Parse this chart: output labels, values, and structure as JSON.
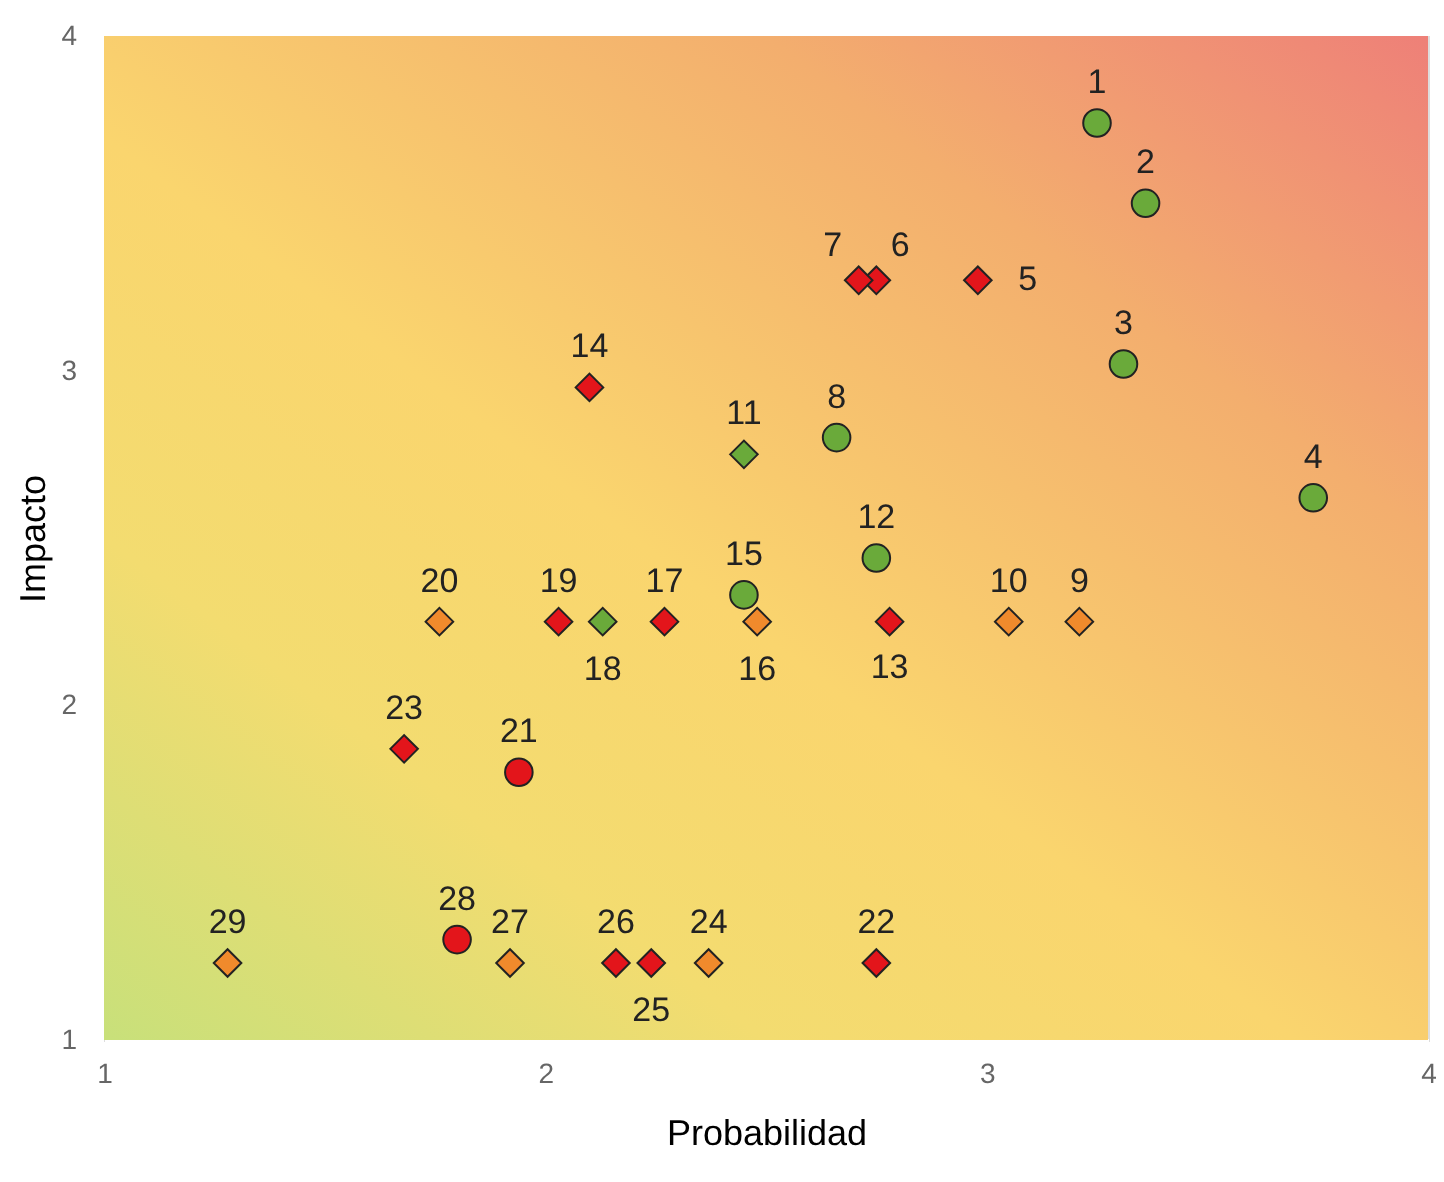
{
  "chart_data": {
    "type": "scatter",
    "xlabel": "Probabilidad",
    "ylabel": "Impacto",
    "xlim": [
      1,
      4
    ],
    "ylim": [
      1,
      4
    ],
    "xticks": [
      1,
      2,
      3,
      4
    ],
    "yticks": [
      1,
      2,
      3,
      4
    ],
    "legend": false,
    "series": [
      {
        "color": "#6aaa3a",
        "marker": "circle",
        "x": [
          3.25,
          3.36,
          3.31,
          3.74,
          2.66,
          2.75,
          2.45
        ],
        "values": [
          3.74,
          3.5,
          3.02,
          2.62,
          2.8,
          2.44,
          2.33
        ]
      },
      {
        "color": "#6aaa3a",
        "marker": "diamond",
        "x": [
          2.45,
          2.13
        ],
        "values": [
          2.75,
          2.25
        ]
      },
      {
        "color": "#e3151b",
        "marker": "diamond",
        "x": [
          2.98,
          2.75,
          2.71,
          2.78,
          2.1,
          2.27,
          2.03,
          2.75,
          1.68,
          2.24,
          2.16
        ],
        "values": [
          3.27,
          3.27,
          3.27,
          2.25,
          2.95,
          2.25,
          2.25,
          1.23,
          1.87,
          1.23,
          1.23
        ]
      },
      {
        "color": "#e3151b",
        "marker": "circle",
        "x": [
          1.94,
          1.8
        ],
        "values": [
          1.8,
          1.3
        ]
      },
      {
        "color": "#f08a2c",
        "marker": "diamond",
        "x": [
          3.21,
          3.05,
          2.48,
          1.76,
          2.37,
          1.92,
          1.28
        ],
        "values": [
          2.25,
          2.25,
          2.25,
          2.25,
          1.23,
          1.23,
          1.23
        ]
      }
    ],
    "annotations": [
      {
        "text": "1",
        "x": 3.25,
        "y": 3.74
      },
      {
        "text": "2",
        "x": 3.36,
        "y": 3.5
      },
      {
        "text": "3",
        "x": 3.31,
        "y": 3.02
      },
      {
        "text": "4",
        "x": 3.74,
        "y": 2.62
      },
      {
        "text": "5",
        "x": 2.98,
        "y": 3.27
      },
      {
        "text": "6",
        "x": 2.75,
        "y": 3.27
      },
      {
        "text": "7",
        "x": 2.71,
        "y": 3.27
      },
      {
        "text": "8",
        "x": 2.66,
        "y": 2.8
      },
      {
        "text": "9",
        "x": 3.21,
        "y": 2.25
      },
      {
        "text": "10",
        "x": 3.05,
        "y": 2.25
      },
      {
        "text": "11",
        "x": 2.45,
        "y": 2.75
      },
      {
        "text": "12",
        "x": 2.75,
        "y": 2.44
      },
      {
        "text": "13",
        "x": 2.78,
        "y": 2.25
      },
      {
        "text": "14",
        "x": 2.1,
        "y": 2.95
      },
      {
        "text": "15",
        "x": 2.45,
        "y": 2.33
      },
      {
        "text": "16",
        "x": 2.48,
        "y": 2.25
      },
      {
        "text": "17",
        "x": 2.27,
        "y": 2.25
      },
      {
        "text": "18",
        "x": 2.13,
        "y": 2.25
      },
      {
        "text": "19",
        "x": 2.03,
        "y": 2.25
      },
      {
        "text": "20",
        "x": 1.76,
        "y": 2.25
      },
      {
        "text": "21",
        "x": 1.94,
        "y": 1.8
      },
      {
        "text": "22",
        "x": 2.75,
        "y": 1.23
      },
      {
        "text": "23",
        "x": 1.68,
        "y": 1.87
      },
      {
        "text": "24",
        "x": 2.37,
        "y": 1.23
      },
      {
        "text": "25",
        "x": 2.24,
        "y": 1.23
      },
      {
        "text": "26",
        "x": 2.16,
        "y": 1.23
      },
      {
        "text": "27",
        "x": 1.92,
        "y": 1.23
      },
      {
        "text": "28",
        "x": 1.8,
        "y": 1.3
      },
      {
        "text": "29",
        "x": 1.28,
        "y": 1.23
      }
    ]
  }
}
